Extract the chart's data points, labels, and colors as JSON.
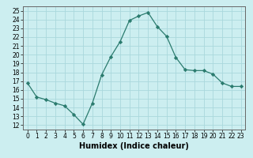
{
  "x": [
    0,
    1,
    2,
    3,
    4,
    5,
    6,
    7,
    8,
    9,
    10,
    11,
    12,
    13,
    14,
    15,
    16,
    17,
    18,
    19,
    20,
    21,
    22,
    23
  ],
  "y": [
    16.8,
    15.2,
    14.9,
    14.5,
    14.2,
    13.2,
    12.1,
    14.5,
    17.7,
    19.8,
    21.5,
    23.9,
    24.4,
    24.8,
    23.2,
    22.1,
    19.7,
    18.3,
    18.2,
    18.2,
    17.8,
    16.8,
    16.4,
    16.4
  ],
  "line_color": "#2a7b6e",
  "marker": "D",
  "marker_size": 2.2,
  "bg_color": "#cceef0",
  "grid_color": "#aad8dc",
  "xlabel": "Humidex (Indice chaleur)",
  "ylabel_ticks": [
    12,
    13,
    14,
    15,
    16,
    17,
    18,
    19,
    20,
    21,
    22,
    23,
    24,
    25
  ],
  "xlim": [
    -0.5,
    23.5
  ],
  "ylim": [
    11.5,
    25.5
  ],
  "xticks": [
    0,
    1,
    2,
    3,
    4,
    5,
    6,
    7,
    8,
    9,
    10,
    11,
    12,
    13,
    14,
    15,
    16,
    17,
    18,
    19,
    20,
    21,
    22,
    23
  ],
  "tick_fontsize": 5.5,
  "xlabel_fontsize": 7,
  "linewidth": 0.9
}
